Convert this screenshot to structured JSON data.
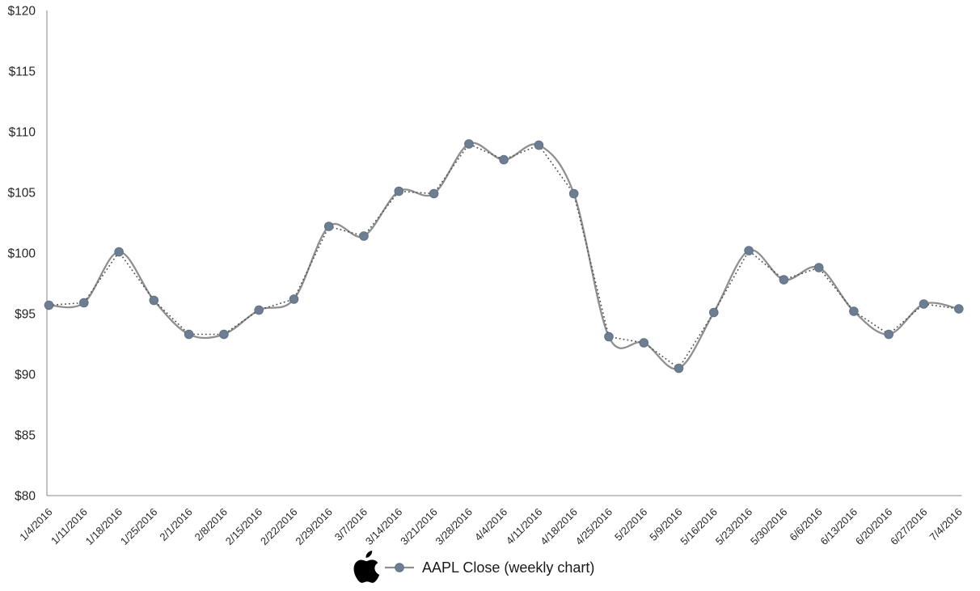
{
  "chart_data": {
    "type": "line",
    "title": "",
    "xlabel": "",
    "ylabel": "",
    "ylim": [
      80,
      120
    ],
    "ytick_step": 5,
    "yticks": [
      "$80",
      "$85",
      "$90",
      "$95",
      "$100",
      "$105",
      "$110",
      "$115",
      "$120"
    ],
    "x_labels": [
      "1/4/2016",
      "1/11/2016",
      "1/18/2016",
      "1/25/2016",
      "2/1/2016",
      "2/8/2016",
      "2/15/2016",
      "2/22/2016",
      "2/29/2016",
      "3/7/2016",
      "3/14/2016",
      "3/21/2016",
      "3/28/2016",
      "4/4/2016",
      "4/11/2016",
      "4/18/2016",
      "4/25/2016",
      "5/2/2016",
      "5/9/2016",
      "5/16/2016",
      "5/23/2016",
      "5/30/2016",
      "6/6/2016",
      "6/13/2016",
      "6/20/2016",
      "6/27/2016",
      "7/4/2016"
    ],
    "series": [
      {
        "name": "AAPL Close (weekly chart)",
        "style": "smooth-line-with-markers",
        "values": [
          95.7,
          95.9,
          100.1,
          96.1,
          93.3,
          93.3,
          95.3,
          96.2,
          102.2,
          101.4,
          105.1,
          104.9,
          109.0,
          107.7,
          108.9,
          104.9,
          93.1,
          92.6,
          90.5,
          95.1,
          100.2,
          97.8,
          98.8,
          95.2,
          93.3,
          95.8,
          95.4
        ]
      }
    ],
    "trendline": {
      "style": "dotted-straight-segments",
      "follows_series": "AAPL Close (weekly chart)"
    },
    "grid": "off",
    "legend": {
      "position": "bottom-center",
      "label": "AAPL Close (weekly chart)",
      "icon": "apple-logo"
    }
  },
  "colors": {
    "line": "#8f8f8f",
    "marker_fill": "#6d7e92",
    "marker_stroke": "#5f7285",
    "trendline": "#4f4f4f",
    "axis": "#a0a0a0",
    "tick_text": "#262626",
    "legend_text": "#1a1a1a",
    "apple_logo": "#000000",
    "background": "#ffffff"
  }
}
